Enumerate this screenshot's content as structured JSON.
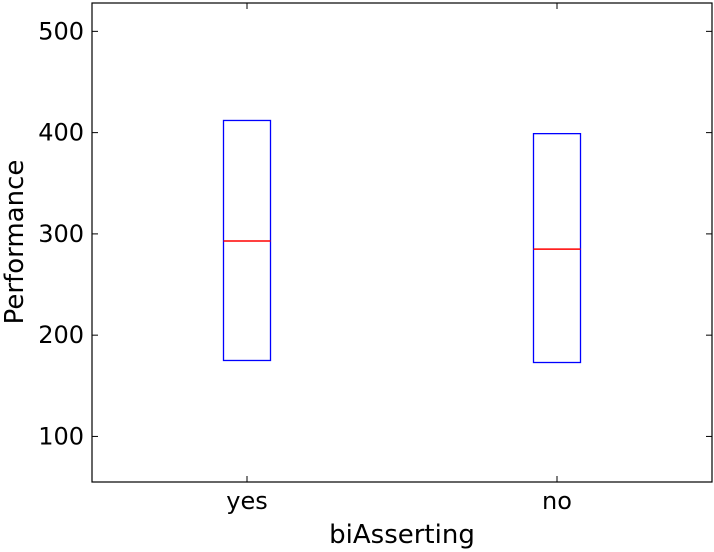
{
  "chart_data": {
    "type": "box",
    "title": "",
    "xlabel": "biAsserting",
    "ylabel": "Performance",
    "ylim": [
      55,
      528
    ],
    "yticks": [
      100,
      200,
      300,
      400,
      500
    ],
    "grid": false,
    "categories": [
      "yes",
      "no"
    ],
    "boxes": [
      {
        "category": "yes",
        "q1": 175,
        "median": 293,
        "q3": 412
      },
      {
        "category": "no",
        "q1": 173,
        "median": 285,
        "q3": 399
      }
    ],
    "colors": {
      "box": "#0000ff",
      "median": "#ff0000",
      "axes": "#000000"
    }
  }
}
